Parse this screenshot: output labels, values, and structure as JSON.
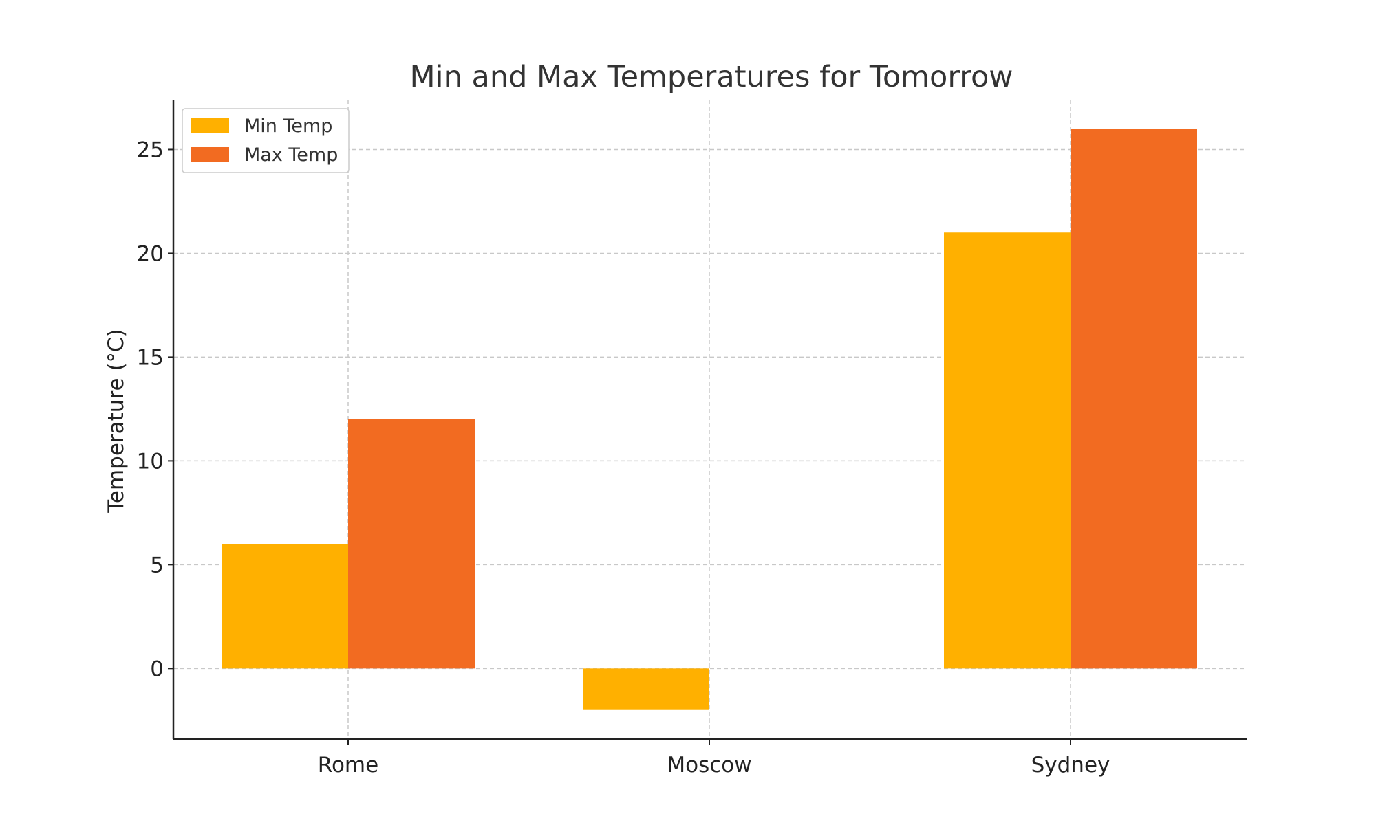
{
  "chart_data": {
    "type": "bar",
    "title": "Min and Max Temperatures for Tomorrow",
    "xlabel": "",
    "ylabel": "Temperature (°C)",
    "categories": [
      "Rome",
      "Moscow",
      "Sydney"
    ],
    "series": [
      {
        "name": "Min Temp",
        "values": [
          6,
          -2,
          21
        ],
        "color": "#FFB000"
      },
      {
        "name": "Max Temp",
        "values": [
          12,
          0,
          26
        ],
        "color": "#F26B21"
      }
    ],
    "ylim": [
      -3.4,
      27.4
    ],
    "yticks": [
      0,
      5,
      10,
      15,
      20,
      25
    ],
    "grid": true,
    "legend_position": "top-left"
  }
}
